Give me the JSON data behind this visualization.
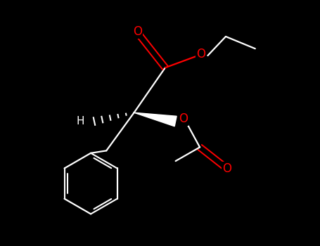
{
  "background_color": "#000000",
  "bond_color": "#ffffff",
  "O_color": "#ff0000",
  "fig_width": 4.55,
  "fig_height": 3.5,
  "dpi": 100,
  "xlim": [
    0,
    9.1
  ],
  "ylim": [
    0,
    7.0
  ]
}
